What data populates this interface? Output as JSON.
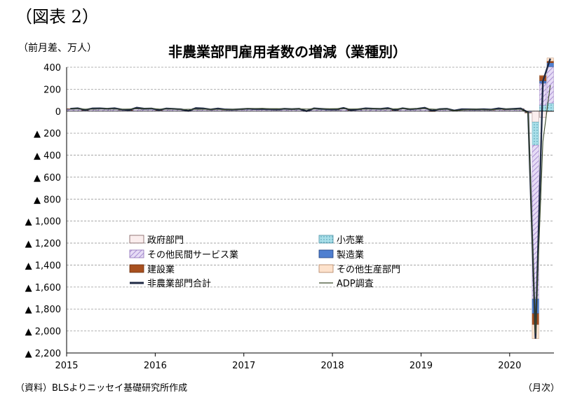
{
  "figure_label": "（図表 2）",
  "chart_title": "非農業部門雇用者数の増減（業種別）",
  "unit_label": "（前月差、万人）",
  "source": "（資料）BLSよりニッセイ基礎研究所作成",
  "x_unit": "（月次）",
  "chart_data": {
    "type": "bar",
    "ylim": [
      -2200,
      400
    ],
    "y_ticks": [
      400,
      200,
      0,
      -200,
      -400,
      -600,
      -800,
      -1000,
      -1200,
      -1400,
      -1600,
      -1800,
      -2000,
      -2200
    ],
    "y_tick_labels": [
      "400",
      "200",
      "0",
      "▲ 200",
      "▲ 400",
      "▲ 600",
      "▲ 800",
      "▲ 1,000",
      "▲ 1,200",
      "▲ 1,400",
      "▲ 1,600",
      "▲ 1,800",
      "▲ 2,000",
      "▲ 2,200"
    ],
    "x_start": "2015-01",
    "x_tick_labels": [
      "2015",
      "2016",
      "2017",
      "2018",
      "2019",
      "2020"
    ],
    "grid": true,
    "legend_position": "center-left",
    "stacked_series": [
      {
        "name": "政府部門",
        "color": "#fbeeee",
        "stroke": "#7a5a5a"
      },
      {
        "name": "小売業",
        "color": "#9fd9e6",
        "stroke": "#4a8fa3"
      },
      {
        "name": "その他民間サービス業",
        "color": "#d9c8ef",
        "stroke": "#8c6db8"
      },
      {
        "name": "製造業",
        "color": "#4f7fd0",
        "stroke": "#1f3f7a"
      },
      {
        "name": "建設業",
        "color": "#a8501f",
        "stroke": "#6a2e0e"
      },
      {
        "name": "その他生産部門",
        "color": "#fde2cc",
        "stroke": "#b08060"
      }
    ],
    "line_series": [
      {
        "name": "非農業部門合計",
        "color": "#1f2a44",
        "values": [
          22,
          27,
          12,
          25,
          26,
          22,
          27,
          15,
          11,
          32,
          23,
          24,
          11,
          24,
          21,
          17,
          3,
          28,
          25,
          16,
          24,
          16,
          15,
          18,
          22,
          20,
          19,
          18,
          16,
          22,
          19,
          22,
          1,
          26,
          21,
          17,
          16,
          30,
          10,
          17,
          26,
          23,
          21,
          28,
          12,
          27,
          18,
          22,
          31,
          5,
          19,
          22,
          6,
          18,
          17,
          16,
          18,
          15,
          26,
          18,
          21,
          25,
          -11,
          -2070,
          272,
          479
        ]
      },
      {
        "name": "ADP調査",
        "color": "#3b4a2a",
        "values": [
          20,
          21,
          19,
          18,
          20,
          23,
          19,
          18,
          20,
          22,
          21,
          24,
          20,
          19,
          20,
          16,
          17,
          17,
          18,
          17,
          16,
          14,
          17,
          17,
          24,
          24,
          26,
          22,
          23,
          20,
          19,
          21,
          19,
          21,
          20,
          22,
          23,
          22,
          20,
          21,
          18,
          22,
          21,
          19,
          21,
          22,
          21,
          23,
          23,
          19,
          16,
          20,
          4,
          10,
          15,
          19,
          12,
          14,
          16,
          20,
          17,
          18,
          -15,
          -2024,
          -276,
          236
        ]
      }
    ],
    "stacked_values": {
      "政府部門": [
        0,
        0,
        0,
        0,
        0,
        0,
        0,
        0,
        0,
        0,
        0,
        0,
        0,
        0,
        0,
        0,
        0,
        0,
        0,
        0,
        0,
        0,
        0,
        0,
        0,
        0,
        0,
        0,
        0,
        0,
        0,
        0,
        0,
        0,
        0,
        0,
        0,
        0,
        0,
        0,
        0,
        0,
        0,
        0,
        0,
        0,
        0,
        0,
        0,
        0,
        0,
        0,
        0,
        0,
        0,
        0,
        0,
        0,
        0,
        0,
        0,
        0,
        -1,
        -98,
        -57,
        -5
      ],
      "小売業": [
        0,
        0,
        0,
        0,
        0,
        0,
        0,
        0,
        0,
        0,
        0,
        0,
        0,
        0,
        0,
        0,
        0,
        0,
        0,
        0,
        0,
        0,
        0,
        0,
        0,
        0,
        0,
        0,
        0,
        0,
        0,
        0,
        0,
        0,
        0,
        0,
        0,
        0,
        0,
        0,
        0,
        0,
        0,
        0,
        0,
        0,
        0,
        0,
        0,
        0,
        0,
        0,
        0,
        0,
        0,
        0,
        0,
        0,
        0,
        0,
        0,
        0,
        -4,
        -211,
        54,
        74
      ],
      "その他民間サービス業": [
        18,
        20,
        9,
        18,
        20,
        18,
        20,
        12,
        8,
        23,
        17,
        19,
        9,
        18,
        16,
        14,
        2,
        21,
        19,
        13,
        19,
        12,
        11,
        14,
        18,
        15,
        15,
        14,
        12,
        17,
        15,
        17,
        1,
        20,
        16,
        13,
        12,
        22,
        8,
        13,
        20,
        18,
        16,
        21,
        9,
        20,
        14,
        17,
        24,
        4,
        15,
        17,
        5,
        14,
        13,
        12,
        14,
        11,
        20,
        13,
        16,
        19,
        -6,
        -1400,
        200,
        330
      ],
      "製造業": [
        1,
        1,
        1,
        1,
        1,
        1,
        1,
        1,
        1,
        1,
        1,
        1,
        0,
        0,
        0,
        0,
        0,
        0,
        0,
        0,
        0,
        0,
        0,
        0,
        1,
        1,
        1,
        1,
        1,
        1,
        1,
        1,
        0,
        1,
        1,
        1,
        1,
        2,
        1,
        2,
        2,
        2,
        2,
        2,
        1,
        2,
        1,
        2,
        1,
        0,
        1,
        1,
        0,
        0,
        1,
        1,
        0,
        0,
        1,
        0,
        1,
        1,
        -2,
        -133,
        22,
        36
      ],
      "建設業": [
        3,
        3,
        1,
        3,
        3,
        2,
        3,
        1,
        1,
        4,
        3,
        2,
        1,
        3,
        3,
        2,
        0,
        4,
        3,
        2,
        3,
        2,
        2,
        2,
        2,
        2,
        1,
        2,
        2,
        3,
        2,
        3,
        0,
        3,
        3,
        2,
        2,
        4,
        1,
        1,
        2,
        2,
        2,
        3,
        1,
        3,
        2,
        2,
        3,
        -1,
        2,
        2,
        0,
        2,
        1,
        2,
        2,
        2,
        3,
        2,
        2,
        3,
        -3,
        -100,
        46,
        15
      ],
      "その他生産部門": [
        0,
        0,
        0,
        0,
        0,
        0,
        0,
        0,
        0,
        0,
        0,
        0,
        0,
        0,
        0,
        0,
        0,
        0,
        0,
        0,
        0,
        0,
        0,
        0,
        0,
        0,
        0,
        0,
        0,
        0,
        0,
        0,
        0,
        0,
        0,
        0,
        0,
        0,
        0,
        0,
        0,
        0,
        0,
        0,
        0,
        0,
        0,
        0,
        0,
        0,
        0,
        0,
        0,
        0,
        0,
        0,
        0,
        0,
        0,
        0,
        0,
        0,
        0,
        -128,
        7,
        29
      ]
    }
  }
}
